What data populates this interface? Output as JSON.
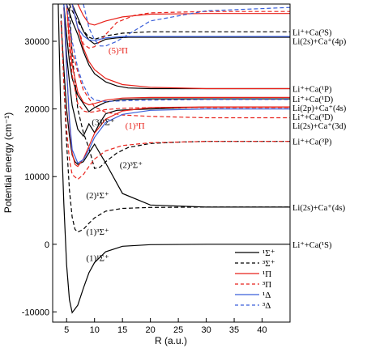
{
  "chart_data": {
    "type": "line",
    "xlabel": "R (a.u.)",
    "ylabel": "Potential energy (cm⁻¹)",
    "xlim": [
      2.5,
      45
    ],
    "ylim": [
      -11500,
      35500
    ],
    "x_ticks": [
      "5",
      "10",
      "15",
      "20",
      "25",
      "30",
      "35",
      "40"
    ],
    "y_ticks": [
      "-10000",
      "0",
      "10000",
      "20000",
      "30000"
    ],
    "grid": false,
    "legend_position": "bottom-right",
    "colors": {
      "black": "#000000",
      "red": "#e8221b",
      "blue": "#3a5fd9"
    },
    "legend": [
      {
        "label": "¹Σ⁺",
        "color": "#000000",
        "dashed": false
      },
      {
        "label": "³Σ⁺",
        "color": "#000000",
        "dashed": true
      },
      {
        "label": "¹Π",
        "color": "#e8221b",
        "dashed": false
      },
      {
        "label": "³Π",
        "color": "#e8221b",
        "dashed": true
      },
      {
        "label": "¹Δ",
        "color": "#3a5fd9",
        "dashed": false
      },
      {
        "label": "³Δ",
        "color": "#3a5fd9",
        "dashed": true
      }
    ],
    "asymptote_labels": [
      {
        "text": "Li⁺+Ca(³S)",
        "y": 31400
      },
      {
        "text": "Li(2s)+Ca⁺(4p)",
        "y": 30600
      },
      {
        "text": "Li⁺+Ca(¹P)",
        "y": 23000
      },
      {
        "text": "Li⁺+Ca(¹D)",
        "y": 21500
      },
      {
        "text": "Li(2p)+Ca⁺(4s)",
        "y": 20300
      },
      {
        "text": "Li⁺+Ca(³D)",
        "y": 19700
      },
      {
        "text": "Li(2s)+Ca⁺(3d)",
        "y": 18700
      },
      {
        "text": "Li⁺+Ca(³P)",
        "y": 15200
      },
      {
        "text": "Li(2s)+Ca⁺(4s)",
        "y": 5500
      },
      {
        "text": "Li⁺+Ca(¹S)",
        "y": 0
      }
    ],
    "state_labels": [
      {
        "text": "(1)¹Σ⁺",
        "x": 8.5,
        "y": -2500,
        "color": "#000000"
      },
      {
        "text": "(1)³Σ⁺",
        "x": 8.5,
        "y": 1400,
        "color": "#000000"
      },
      {
        "text": "(2)¹Σ⁺",
        "x": 8.5,
        "y": 6800,
        "color": "#000000"
      },
      {
        "text": "(2)³Σ⁺",
        "x": 14.5,
        "y": 11300,
        "color": "#000000"
      },
      {
        "text": "(3)¹Σ⁺",
        "x": 9.5,
        "y": 17600,
        "color": "#000000"
      },
      {
        "text": "(1)³Π",
        "x": 15.5,
        "y": 17100,
        "color": "#e8221b"
      },
      {
        "text": "(5)³Π",
        "x": 12.5,
        "y": 28200,
        "color": "#e8221b"
      }
    ],
    "series": [
      {
        "color": "#000000",
        "dashed": false,
        "x": [
          3.5,
          4,
          4.5,
          5,
          5.5,
          6,
          7,
          8,
          9,
          10,
          12,
          15,
          20,
          30,
          45
        ],
        "y": [
          35500,
          18000,
          6000,
          -3000,
          -8200,
          -10100,
          -9000,
          -6500,
          -4200,
          -2700,
          -1100,
          -300,
          -50,
          0,
          0
        ]
      },
      {
        "color": "#000000",
        "dashed": true,
        "x": [
          4,
          4.5,
          5,
          5.5,
          6,
          6.5,
          7,
          8,
          9,
          10,
          12,
          15,
          20,
          30,
          45
        ],
        "y": [
          34000,
          24000,
          15000,
          8000,
          4000,
          2200,
          1800,
          2200,
          3100,
          3900,
          4900,
          5300,
          5450,
          5500,
          5500
        ]
      },
      {
        "color": "#000000",
        "dashed": false,
        "x": [
          4,
          4.5,
          5,
          5.5,
          6,
          6.5,
          7,
          8,
          9,
          10,
          12,
          15,
          20,
          30,
          45
        ],
        "y": [
          33000,
          26000,
          20000,
          16000,
          13200,
          12200,
          11800,
          12200,
          13500,
          14800,
          12000,
          7500,
          5800,
          5500,
          5500
        ]
      },
      {
        "color": "#000000",
        "dashed": true,
        "x": [
          5.5,
          6,
          7,
          8,
          9,
          10,
          11,
          12,
          14,
          16,
          20,
          25,
          30,
          45
        ],
        "y": [
          35000,
          28000,
          20000,
          16500,
          14200,
          11200,
          11400,
          12200,
          13500,
          14300,
          14900,
          15100,
          15200,
          15200
        ]
      },
      {
        "color": "#000000",
        "dashed": false,
        "x": [
          4.5,
          5,
          5.5,
          6,
          7,
          8,
          9,
          10,
          11,
          12,
          14,
          17,
          20,
          30,
          45
        ],
        "y": [
          35000,
          28000,
          24000,
          20500,
          17000,
          16000,
          17800,
          16500,
          18000,
          19300,
          19800,
          19900,
          20000,
          20300,
          20300
        ]
      },
      {
        "color": "#000000",
        "dashed": false,
        "x": [
          4.5,
          5,
          5.5,
          6,
          7,
          8,
          9,
          10,
          12,
          15,
          20,
          30,
          45
        ],
        "y": [
          35500,
          31000,
          27000,
          24500,
          22000,
          20800,
          19600,
          20200,
          21000,
          21400,
          21500,
          21500,
          21500
        ]
      },
      {
        "color": "#000000",
        "dashed": false,
        "x": [
          5,
          6,
          7,
          8,
          9,
          10,
          12,
          14,
          16,
          20,
          30,
          45
        ],
        "y": [
          35500,
          33000,
          31000,
          28500,
          26500,
          25200,
          24000,
          23400,
          23100,
          23000,
          23000,
          23000
        ]
      },
      {
        "color": "#000000",
        "dashed": true,
        "x": [
          5.5,
          6,
          7,
          8,
          9,
          10,
          12,
          15,
          20,
          30,
          45
        ],
        "y": [
          35500,
          34500,
          33000,
          31600,
          30600,
          30300,
          30800,
          31200,
          31400,
          31400,
          31400
        ]
      },
      {
        "color": "#000000",
        "dashed": false,
        "x": [
          6,
          7,
          8,
          9,
          10,
          11,
          12,
          14,
          16,
          20,
          30,
          45
        ],
        "y": [
          35500,
          33500,
          31500,
          30200,
          29600,
          29900,
          30300,
          30500,
          30600,
          30600,
          30600,
          30600
        ]
      },
      {
        "color": "#e8221b",
        "dashed": false,
        "x": [
          4.5,
          5,
          5.5,
          6,
          6.5,
          7,
          8,
          9,
          10,
          12,
          15,
          20,
          30,
          45
        ],
        "y": [
          35000,
          26000,
          18000,
          13500,
          11800,
          11500,
          12600,
          14500,
          16400,
          18500,
          19700,
          20200,
          20300,
          20300
        ]
      },
      {
        "color": "#e8221b",
        "dashed": true,
        "x": [
          4,
          4.5,
          5,
          5.5,
          6,
          7,
          8,
          9,
          10,
          12,
          15,
          20,
          30,
          45
        ],
        "y": [
          33000,
          24000,
          17000,
          12500,
          10300,
          9600,
          10300,
          11500,
          12600,
          13800,
          14600,
          15000,
          15200,
          15200
        ]
      },
      {
        "color": "#e8221b",
        "dashed": false,
        "x": [
          5,
          5.5,
          6,
          7,
          8,
          9,
          10,
          12,
          15,
          20,
          30,
          45
        ],
        "y": [
          35500,
          30000,
          26500,
          22500,
          21000,
          20600,
          20800,
          21300,
          21600,
          21700,
          21700,
          21700
        ]
      },
      {
        "color": "#e8221b",
        "dashed": true,
        "x": [
          5,
          5.5,
          6,
          7,
          8,
          9,
          10,
          12,
          15,
          20,
          30,
          45
        ],
        "y": [
          35500,
          29000,
          25000,
          20800,
          19700,
          19500,
          19600,
          19900,
          20100,
          20200,
          20200,
          20200
        ]
      },
      {
        "color": "#e8221b",
        "dashed": false,
        "x": [
          6,
          7,
          8,
          9,
          10,
          12,
          15,
          20,
          30,
          45
        ],
        "y": [
          35500,
          32000,
          29000,
          27000,
          25800,
          24500,
          23600,
          23200,
          23000,
          23000
        ]
      },
      {
        "color": "#e8221b",
        "dashed": true,
        "x": [
          6,
          7,
          8,
          9,
          10,
          11,
          12,
          14,
          17,
          20,
          30,
          45
        ],
        "y": [
          35500,
          32000,
          29600,
          29000,
          29200,
          30000,
          31000,
          32800,
          33800,
          34200,
          34400,
          34400
        ]
      },
      {
        "color": "#e8221b",
        "dashed": false,
        "x": [
          7,
          8,
          9,
          10,
          12,
          15,
          20,
          30,
          45
        ],
        "y": [
          35500,
          33800,
          32600,
          32400,
          33000,
          33600,
          34000,
          34100,
          34100
        ]
      },
      {
        "color": "#e8221b",
        "dashed": true,
        "x": [
          5,
          5.5,
          6,
          7,
          8,
          10,
          12,
          15,
          20,
          30,
          45
        ],
        "y": [
          35500,
          32000,
          28500,
          25500,
          22800,
          20300,
          19500,
          19100,
          18900,
          18700,
          18700
        ]
      },
      {
        "color": "#3a5fd9",
        "dashed": false,
        "x": [
          4.5,
          5,
          5.5,
          6,
          7,
          8,
          9,
          10,
          12,
          15,
          20,
          30,
          45
        ],
        "y": [
          35500,
          26000,
          18500,
          14000,
          12000,
          12500,
          14000,
          15800,
          18000,
          19200,
          19800,
          20000,
          20000
        ]
      },
      {
        "color": "#3a5fd9",
        "dashed": true,
        "x": [
          5,
          6,
          7,
          8,
          9,
          10,
          12,
          15,
          20,
          30,
          45
        ],
        "y": [
          35500,
          30000,
          26000,
          23500,
          22000,
          21300,
          21100,
          21200,
          21300,
          21400,
          21400
        ]
      },
      {
        "color": "#3a5fd9",
        "dashed": false,
        "x": [
          6,
          7,
          8,
          9,
          10,
          11,
          12,
          15,
          20,
          30,
          45
        ],
        "y": [
          35500,
          32000,
          30800,
          30200,
          30100,
          30300,
          30500,
          30700,
          30700,
          30700,
          30700
        ]
      },
      {
        "color": "#3a5fd9",
        "dashed": true,
        "x": [
          8,
          9,
          10,
          11,
          12,
          14,
          17,
          20,
          30,
          45
        ],
        "y": [
          35500,
          32000,
          30200,
          29300,
          29300,
          30000,
          31500,
          33000,
          34500,
          35000
        ]
      }
    ]
  }
}
